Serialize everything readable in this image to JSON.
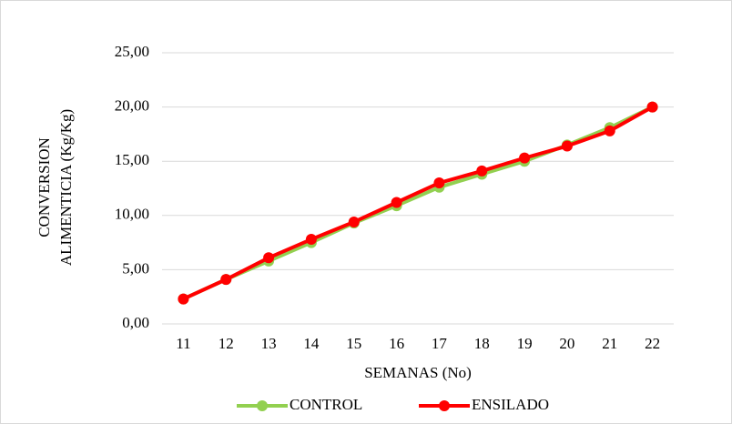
{
  "chart_data": {
    "type": "line",
    "ylabel": [
      "CONVERSION",
      "ALIMENTICIA (Kg/Kg)"
    ],
    "xlabel": "SEMANAS (No)",
    "categories": [
      "11",
      "12",
      "13",
      "14",
      "15",
      "16",
      "17",
      "18",
      "19",
      "20",
      "21",
      "22"
    ],
    "series": [
      {
        "name": "CONTROL",
        "color": "#92d050",
        "values": [
          2.3,
          4.1,
          5.8,
          7.5,
          9.3,
          10.9,
          12.6,
          13.8,
          15.0,
          16.5,
          18.1,
          20.0
        ]
      },
      {
        "name": "ENSILADO",
        "color": "#ff0000",
        "values": [
          2.3,
          4.1,
          6.1,
          7.8,
          9.4,
          11.2,
          13.0,
          14.1,
          15.3,
          16.4,
          17.8,
          20.0
        ]
      }
    ],
    "ylim": [
      0,
      25
    ],
    "yticks": [
      {
        "value": 0,
        "label": "0,00"
      },
      {
        "value": 5,
        "label": "5,00"
      },
      {
        "value": 10,
        "label": "10,00"
      },
      {
        "value": 15,
        "label": "15,00"
      },
      {
        "value": 20,
        "label": "20,00"
      },
      {
        "value": 25,
        "label": "25,00"
      }
    ],
    "grid": true,
    "legend": "bottom"
  }
}
